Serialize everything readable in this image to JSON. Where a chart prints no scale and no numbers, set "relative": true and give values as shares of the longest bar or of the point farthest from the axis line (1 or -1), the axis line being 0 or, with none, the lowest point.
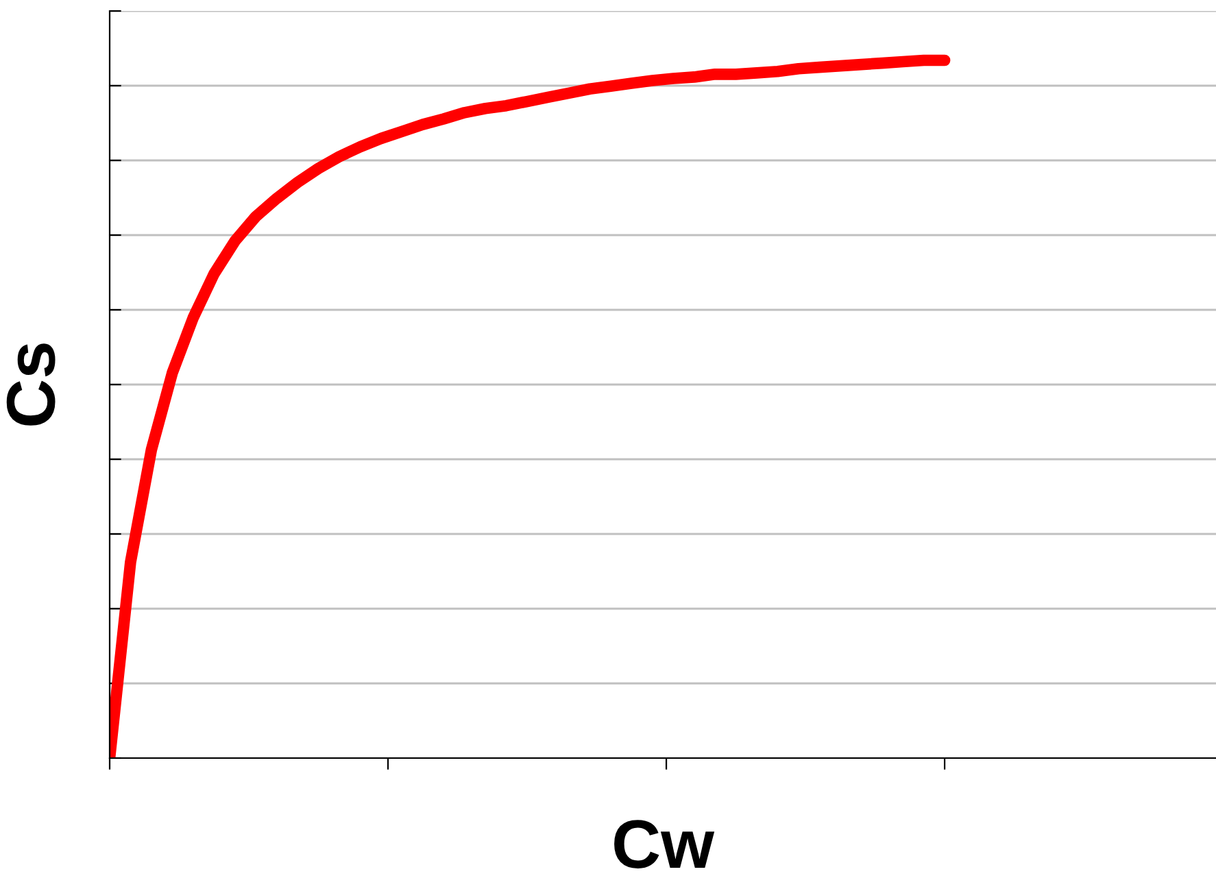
{
  "chart_data": {
    "type": "line",
    "xlabel": "Cw",
    "ylabel": "Cs",
    "relative": true,
    "grid": "y",
    "marker": "none",
    "line_style": "solid",
    "categories": [
      null,
      null,
      null,
      null,
      null,
      null,
      null,
      null,
      null,
      null,
      null,
      null,
      null,
      null,
      null,
      null,
      null,
      null,
      null,
      null,
      null,
      null,
      null,
      null,
      null,
      null,
      null,
      null,
      null,
      null,
      null,
      null,
      null,
      null,
      null,
      null,
      null,
      null,
      null,
      null,
      null,
      null,
      null,
      null,
      null,
      null,
      null,
      null,
      null,
      null,
      null,
      null,
      null,
      null
    ],
    "series": [
      {
        "color": "#ff0000",
        "values": [
          0,
          0.281,
          0.442,
          0.552,
          0.631,
          0.694,
          0.741,
          0.776,
          0.802,
          0.825,
          0.845,
          0.862,
          0.876,
          0.888,
          0.898,
          0.908,
          0.916,
          0.925,
          0.931,
          0.935,
          0.941,
          0.947,
          0.953,
          0.959,
          0.963,
          0.967,
          0.971,
          0.974,
          0.976,
          0.98,
          0.98,
          0.982,
          0.984,
          0.988,
          0.99,
          0.992,
          0.994,
          0.996,
          0.998,
          1,
          1,
          null,
          null,
          null,
          null,
          null,
          null,
          null,
          null,
          null,
          null,
          null,
          null,
          null
        ]
      }
    ]
  }
}
